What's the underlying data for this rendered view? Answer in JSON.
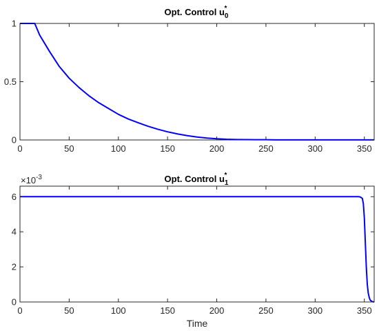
{
  "chart_data": [
    {
      "type": "line",
      "title_main": "Opt. Control u",
      "title_sub": "0",
      "title_sup": "*",
      "xlabel": "",
      "ylabel": "",
      "xlim": [
        0,
        360
      ],
      "ylim": [
        0,
        1
      ],
      "xticks": [
        0,
        50,
        100,
        150,
        200,
        250,
        300,
        350
      ],
      "xtick_labels": [
        "0",
        "50",
        "100",
        "150",
        "200",
        "250",
        "300",
        "350"
      ],
      "yticks": [
        0,
        0.5,
        1
      ],
      "ytick_labels": [
        "0",
        "0.5",
        "1"
      ],
      "grid": true,
      "color": "#0000ff",
      "series": [
        {
          "x": [
            0,
            5,
            10,
            15,
            20,
            30,
            40,
            50,
            60,
            70,
            80,
            90,
            100,
            110,
            120,
            130,
            140,
            150,
            160,
            170,
            180,
            190,
            200,
            210,
            220,
            230,
            240,
            250,
            260,
            280,
            300,
            320,
            340,
            360
          ],
          "y": [
            1,
            1,
            1,
            1,
            0.9,
            0.76,
            0.63,
            0.53,
            0.45,
            0.38,
            0.32,
            0.27,
            0.22,
            0.18,
            0.148,
            0.118,
            0.092,
            0.07,
            0.052,
            0.037,
            0.025,
            0.016,
            0.01,
            0.006,
            0.004,
            0.003,
            0.002,
            0.002,
            0.001,
            0.001,
            0.001,
            0.001,
            0.001,
            0.001
          ]
        }
      ]
    },
    {
      "type": "line",
      "title_main": "Opt. Control u",
      "title_sub": "1",
      "title_sup": "*",
      "xlabel": "Time",
      "ylabel": "",
      "exponent_label_base": "×10",
      "exponent_label_power": "-3",
      "xlim": [
        0,
        360
      ],
      "ylim": [
        0,
        6.6
      ],
      "xticks": [
        0,
        50,
        100,
        150,
        200,
        250,
        300,
        350
      ],
      "xtick_labels": [
        "0",
        "50",
        "100",
        "150",
        "200",
        "250",
        "300",
        "350"
      ],
      "yticks": [
        0,
        2,
        4,
        6
      ],
      "ytick_labels": [
        "0",
        "2",
        "4",
        "6"
      ],
      "grid": true,
      "color": "#0000ff",
      "series": [
        {
          "x": [
            0,
            100,
            200,
            300,
            340,
            344,
            346,
            348,
            349,
            350,
            351,
            352,
            353,
            354,
            355,
            356,
            358,
            360
          ],
          "y": [
            6,
            6,
            6,
            6,
            6,
            6,
            5.98,
            5.9,
            5.6,
            4.8,
            3.4,
            2.0,
            1.0,
            0.5,
            0.25,
            0.1,
            0.02,
            0
          ]
        }
      ]
    }
  ]
}
